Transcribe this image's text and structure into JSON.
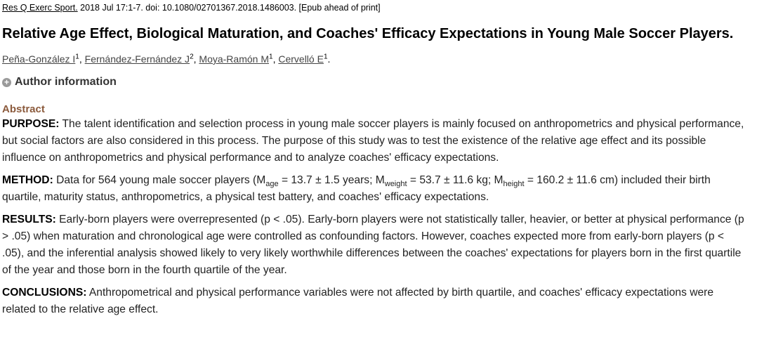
{
  "citation": {
    "journal": "Res Q Exerc Sport.",
    "details": " 2018 Jul 17:1-7. doi: 10.1080/02701367.2018.1486003. [Epub ahead of print]"
  },
  "title": "Relative Age Effect, Biological Maturation, and Coaches' Efficacy Expectations in Young Male Soccer Players.",
  "authors": [
    {
      "name": "Peña-González I",
      "sup": "1",
      "sep": ", "
    },
    {
      "name": "Fernández-Fernández J",
      "sup": "2",
      "sep": ", "
    },
    {
      "name": "Moya-Ramón M",
      "sup": "1",
      "sep": ", "
    },
    {
      "name": "Cervelló E",
      "sup": "1",
      "sep": "."
    }
  ],
  "author_info_label": "Author information",
  "abstract_heading": "Abstract",
  "abstract": {
    "purpose": {
      "label": "PURPOSE:",
      "text": " The talent identification and selection process in young male soccer players is mainly focused on anthropometrics and physical performance, but social factors are also considered in this process. The purpose of this study was to test the existence of the relative age effect and its possible influence on anthropometrics and physical performance and to analyze coaches' efficacy expectations."
    },
    "method": {
      "label": "METHOD:",
      "t1": " Data for 564 young male soccer players (M",
      "s1": "age",
      "t2": " = 13.7 ± 1.5 years; M",
      "s2": "weight",
      "t3": " = 53.7 ± 11.6 kg; M",
      "s3": "height",
      "t4": " = 160.2 ± 11.6 cm) included their birth quartile, maturity status, anthropometrics, a physical test battery, and coaches' efficacy expectations."
    },
    "results": {
      "label": "RESULTS:",
      "text": " Early-born players were overrepresented (p < .05). Early-born players were not statistically taller, heavier, or better at physical performance (p > .05) when maturation and chronological age were controlled as confounding factors. However, coaches expected more from early-born players (p < .05), and the inferential analysis showed likely to very likely worthwhile differences between the coaches' expectations for players born in the first quartile of the year and those born in the fourth quartile of the year."
    },
    "conclusions": {
      "label": "CONCLUSIONS:",
      "text": " Anthropometrical and physical performance variables were not affected by birth quartile, and coaches' efficacy expectations were related to the relative age effect."
    }
  }
}
